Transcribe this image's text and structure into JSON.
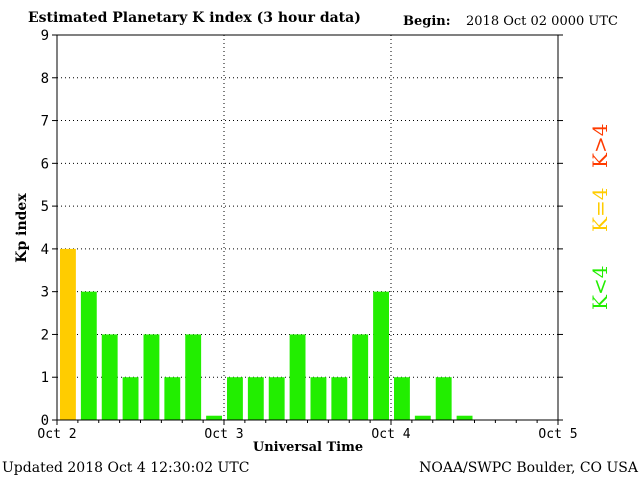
{
  "header": {
    "title": "Estimated Planetary K index (3 hour data)",
    "begin_label": "Begin:",
    "begin_value": "2018 Oct 02 0000 UTC"
  },
  "footer": {
    "updated": "Updated 2018 Oct  4 12:30:02 UTC",
    "credit": "NOAA/SWPC Boulder, CO USA"
  },
  "legend": [
    {
      "text": "K>4",
      "color": "#ff3b00"
    },
    {
      "text": "K=4",
      "color": "#ffcc00"
    },
    {
      "text": "K<4",
      "color": "#22ee00"
    }
  ],
  "chart_data": {
    "type": "bar",
    "title": "Estimated Planetary K index (3 hour data)",
    "xlabel": "Universal Time",
    "ylabel": "Kp index",
    "ylim": [
      0,
      9
    ],
    "yticks": [
      0,
      1,
      2,
      3,
      4,
      5,
      6,
      7,
      8,
      9
    ],
    "xticks": [
      "Oct 2",
      "Oct 3",
      "Oct 4",
      "Oct 5"
    ],
    "grid": true,
    "interval": "3 hour",
    "categories": [
      "Oct 2 00:00",
      "Oct 2 03:00",
      "Oct 2 06:00",
      "Oct 2 09:00",
      "Oct 2 12:00",
      "Oct 2 15:00",
      "Oct 2 18:00",
      "Oct 2 21:00",
      "Oct 3 00:00",
      "Oct 3 03:00",
      "Oct 3 06:00",
      "Oct 3 09:00",
      "Oct 3 12:00",
      "Oct 3 15:00",
      "Oct 3 18:00",
      "Oct 3 21:00",
      "Oct 4 00:00",
      "Oct 4 03:00",
      "Oct 4 06:00",
      "Oct 4 09:00"
    ],
    "values": [
      4,
      3,
      2,
      1,
      2,
      1,
      2,
      0.1,
      1,
      1,
      1,
      2,
      1,
      1,
      2,
      3,
      1,
      0.1,
      1,
      0.1
    ],
    "colors": {
      "below4": "#22ee00",
      "equal4": "#ffcc00",
      "above4": "#ff3b00"
    }
  }
}
